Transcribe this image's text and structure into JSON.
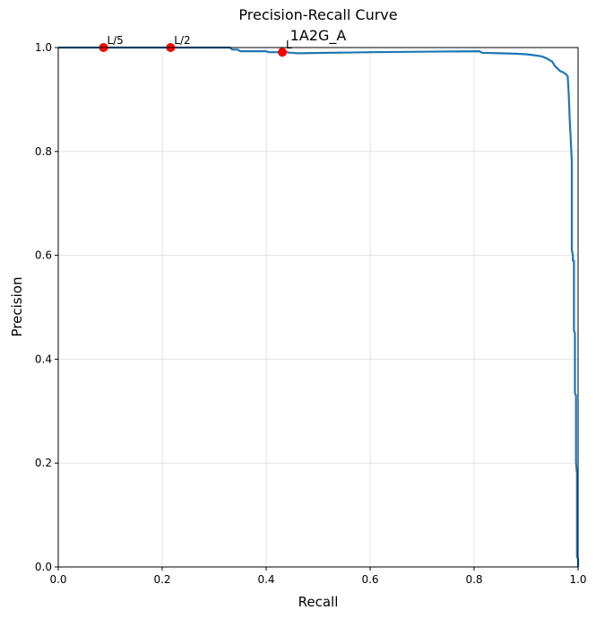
{
  "chart_data": {
    "type": "line",
    "title": "Precision-Recall Curve",
    "subtitle": "1A2G_A",
    "xlabel": "Recall",
    "ylabel": "Precision",
    "xlim": [
      0.0,
      1.0
    ],
    "ylim": [
      0.0,
      1.0
    ],
    "xticks": [
      "0.0",
      "0.2",
      "0.4",
      "0.6",
      "0.8",
      "1.0"
    ],
    "yticks": [
      "0.0",
      "0.2",
      "0.4",
      "0.6",
      "0.8",
      "1.0"
    ],
    "grid": true,
    "line_color": "#1f77b4",
    "marker_color": "#ff0000",
    "series": [
      {
        "x": [
          0.0,
          0.33,
          0.335,
          0.345,
          0.35,
          0.4,
          0.405,
          0.44,
          0.445,
          0.45,
          0.46,
          0.6,
          0.81,
          0.815,
          0.85,
          0.88,
          0.9,
          0.91,
          0.93,
          0.94,
          0.95,
          0.955,
          0.96,
          0.965,
          0.97,
          0.975,
          0.98,
          0.982,
          0.984,
          0.986,
          0.988,
          0.988,
          0.99,
          0.99,
          0.992,
          0.992,
          0.994,
          0.994,
          0.996,
          0.996,
          0.998,
          0.998,
          1.0,
          1.0
        ],
        "y": [
          1.0,
          1.0,
          0.996,
          0.996,
          0.993,
          0.993,
          0.991,
          0.991,
          0.99,
          0.99,
          0.989,
          0.991,
          0.993,
          0.99,
          0.989,
          0.988,
          0.987,
          0.986,
          0.983,
          0.979,
          0.973,
          0.965,
          0.96,
          0.955,
          0.953,
          0.95,
          0.945,
          0.91,
          0.86,
          0.82,
          0.78,
          0.61,
          0.6,
          0.59,
          0.59,
          0.455,
          0.45,
          0.335,
          0.33,
          0.2,
          0.18,
          0.02,
          0.015,
          0.0
        ]
      }
    ],
    "markers": [
      {
        "label": "L/5",
        "x": 0.087,
        "y": 1.0
      },
      {
        "label": "L/2",
        "x": 0.216,
        "y": 1.0
      },
      {
        "label": "L",
        "x": 0.431,
        "y": 0.991
      }
    ]
  }
}
